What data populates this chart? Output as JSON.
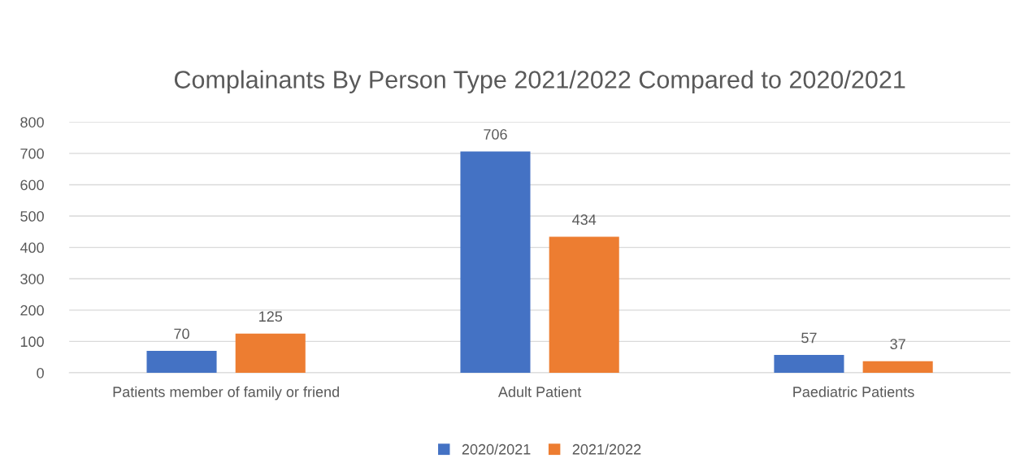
{
  "chart_data": {
    "type": "bar",
    "title": "Complainants By Person Type 2021/2022 Compared to 2020/2021",
    "categories": [
      "Patients member of family or friend",
      "Adult Patient",
      "Paediatric Patients"
    ],
    "series": [
      {
        "name": "2020/2021",
        "color": "#4472c4",
        "values": [
          70,
          706,
          57
        ]
      },
      {
        "name": "2021/2022",
        "color": "#ed7d31",
        "values": [
          125,
          434,
          37
        ]
      }
    ],
    "ylim": [
      0,
      800
    ],
    "yticks": [
      0,
      100,
      200,
      300,
      400,
      500,
      600,
      700,
      800
    ],
    "grid": "y",
    "legend": "bottom",
    "data_labels": true
  }
}
